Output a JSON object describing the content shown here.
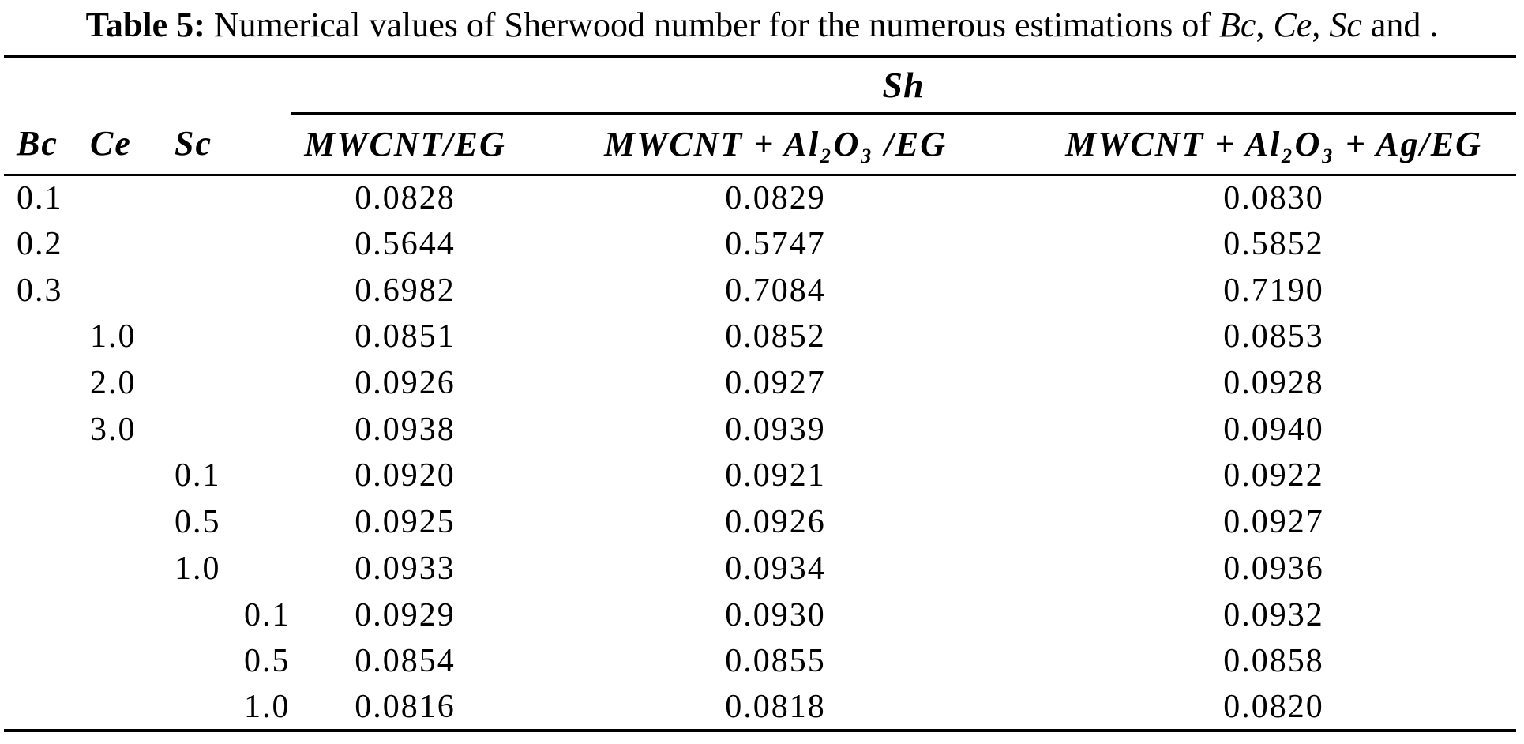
{
  "caption": {
    "label": "Table 5:",
    "text1": " Numerical values of Sherwood number for the numerous estimations of ",
    "var1": "Bc",
    "sep1": ", ",
    "var2": "Ce",
    "sep2": ", ",
    "var3": "Sc",
    "text2": " and ."
  },
  "table": {
    "group_header": "Sh",
    "columns": {
      "bc": "Bc",
      "ce": "Ce",
      "sc": "Sc",
      "p4": "",
      "sh1": "MWCNT/EG",
      "sh2": "MWCNT + Al₂O₃ /EG",
      "sh3": "MWCNT + Al₂O₃ + Ag/EG"
    },
    "rows": [
      {
        "bc": "0.1",
        "ce": "",
        "sc": "",
        "p4": "",
        "v1": "0.0828",
        "v2": "0.0829",
        "v3": "0.0830"
      },
      {
        "bc": "0.2",
        "ce": "",
        "sc": "",
        "p4": "",
        "v1": "0.5644",
        "v2": "0.5747",
        "v3": "0.5852"
      },
      {
        "bc": "0.3",
        "ce": "",
        "sc": "",
        "p4": "",
        "v1": "0.6982",
        "v2": "0.7084",
        "v3": "0.7190"
      },
      {
        "bc": "",
        "ce": "1.0",
        "sc": "",
        "p4": "",
        "v1": "0.0851",
        "v2": "0.0852",
        "v3": "0.0853"
      },
      {
        "bc": "",
        "ce": "2.0",
        "sc": "",
        "p4": "",
        "v1": "0.0926",
        "v2": "0.0927",
        "v3": "0.0928"
      },
      {
        "bc": "",
        "ce": "3.0",
        "sc": "",
        "p4": "",
        "v1": "0.0938",
        "v2": "0.0939",
        "v3": "0.0940"
      },
      {
        "bc": "",
        "ce": "",
        "sc": "0.1",
        "p4": "",
        "v1": "0.0920",
        "v2": "0.0921",
        "v3": "0.0922"
      },
      {
        "bc": "",
        "ce": "",
        "sc": "0.5",
        "p4": "",
        "v1": "0.0925",
        "v2": "0.0926",
        "v3": "0.0927"
      },
      {
        "bc": "",
        "ce": "",
        "sc": "1.0",
        "p4": "",
        "v1": "0.0933",
        "v2": "0.0934",
        "v3": "0.0936"
      },
      {
        "bc": "",
        "ce": "",
        "sc": "",
        "p4": "0.1",
        "v1": "0.0929",
        "v2": "0.0930",
        "v3": "0.0932"
      },
      {
        "bc": "",
        "ce": "",
        "sc": "",
        "p4": "0.5",
        "v1": "0.0854",
        "v2": "0.0855",
        "v3": "0.0858"
      },
      {
        "bc": "",
        "ce": "",
        "sc": "",
        "p4": "1.0",
        "v1": "0.0816",
        "v2": "0.0818",
        "v3": "0.0820"
      }
    ]
  },
  "colors": {
    "text": "#000000",
    "background": "#ffffff",
    "rule": "#000000"
  }
}
